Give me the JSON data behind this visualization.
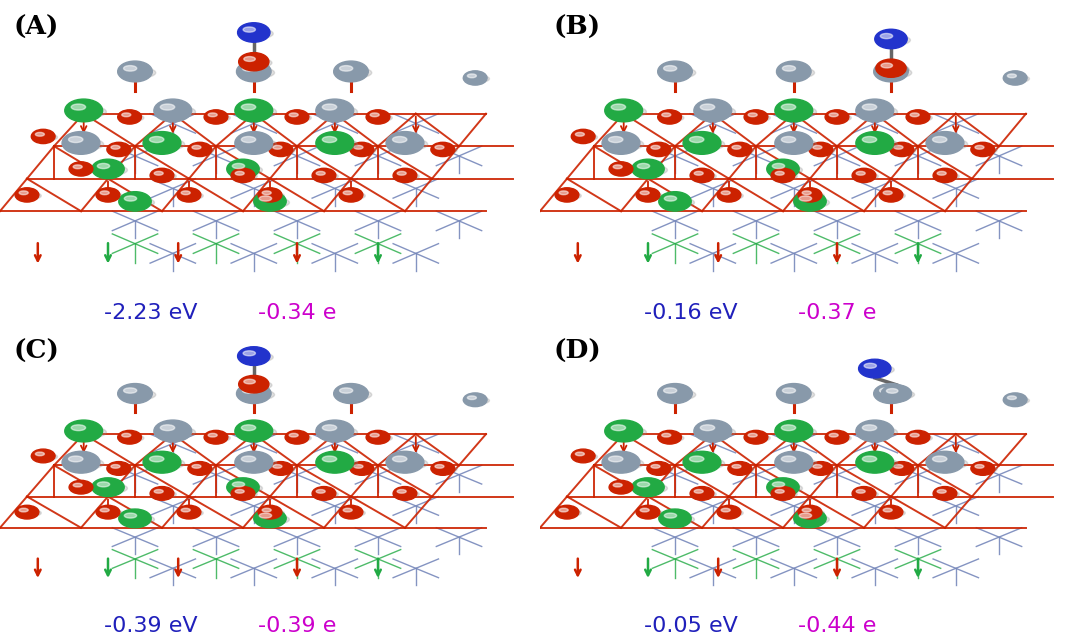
{
  "panel_labels": [
    "(A)",
    "(B)",
    "(C)",
    "(D)"
  ],
  "ev_values": [
    "-2.23 eV",
    "-0.16 eV",
    "-0.39 eV",
    "-0.05 eV"
  ],
  "e_values": [
    "-0.34 e",
    "-0.37 e",
    "-0.39 e",
    "-0.44 e"
  ],
  "ev_color": "#2020BB",
  "e_color": "#CC00CC",
  "label_color": "#000000",
  "bg_color": "#FFFFFF",
  "panel_label_fontsize": 19,
  "value_fontsize": 16,
  "red_line": "#CC2200",
  "blue_line": "#7788BB",
  "green_line": "#22AA44",
  "atom_grey": "#8899AA",
  "atom_red": "#CC2200",
  "atom_green": "#22AA44",
  "atom_blue": "#2233CC",
  "atom_dark_grey": "#778899"
}
